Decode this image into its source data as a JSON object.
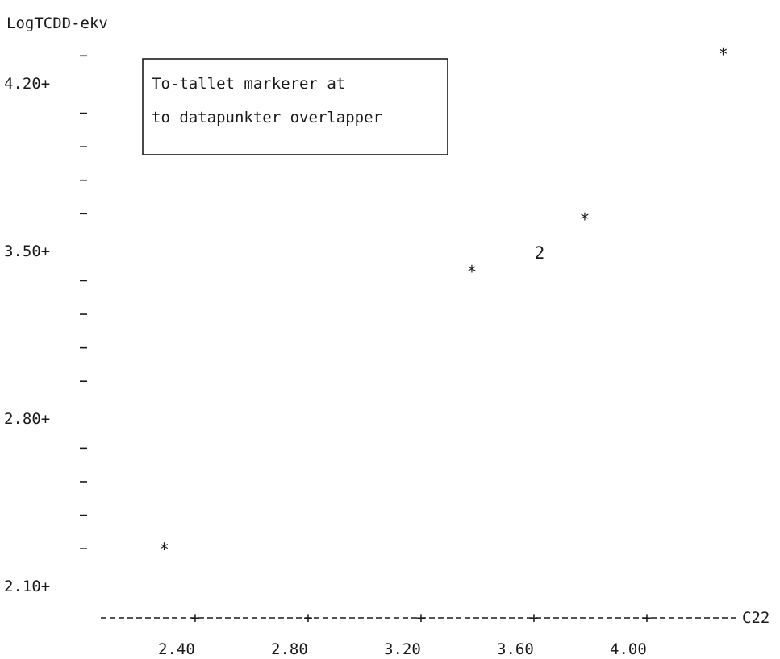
{
  "chart_data": {
    "type": "scatter",
    "title": "",
    "ylabel": "LogTCDD-ekv",
    "xlabel": "C22",
    "y_ticks": [
      "4.20+",
      "3.50+",
      "2.80+",
      "2.10+"
    ],
    "y_tick_values": [
      4.2,
      3.5,
      2.8,
      2.1
    ],
    "x_ticks": [
      "2.40",
      "2.80",
      "3.20",
      "3.60",
      "4.00"
    ],
    "x_tick_values": [
      2.4,
      2.8,
      3.2,
      3.6,
      4.0
    ],
    "xlim": [
      2.2,
      4.4
    ],
    "ylim": [
      2.1,
      4.4
    ],
    "series": [
      {
        "points": [
          {
            "x": 2.29,
            "y": 2.26,
            "marker": "*"
          },
          {
            "x": 3.38,
            "y": 3.42,
            "marker": "*"
          },
          {
            "x": 3.62,
            "y": 3.49,
            "marker": "2"
          },
          {
            "x": 3.78,
            "y": 3.64,
            "marker": "*"
          },
          {
            "x": 4.27,
            "y": 4.33,
            "marker": "*"
          }
        ]
      }
    ],
    "annotation": {
      "lines": [
        "To-tallet markerer at",
        "to datapunkter overlapper"
      ]
    },
    "grid": false,
    "legend": "none"
  }
}
